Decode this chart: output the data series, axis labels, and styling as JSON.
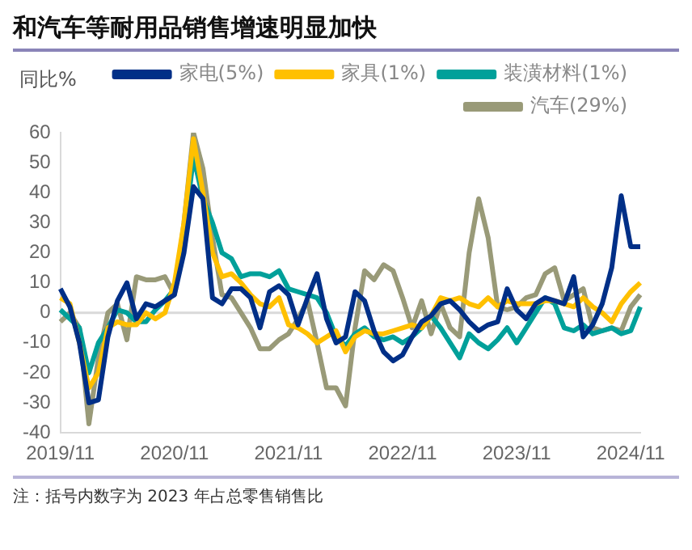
{
  "chart_data": {
    "type": "line",
    "title": "和汽车等耐用品销售增速明显加快",
    "ylabel": "同比%",
    "categories": [
      "2019/11",
      null,
      null,
      null,
      null,
      null,
      null,
      null,
      null,
      null,
      null,
      null,
      "2020/11",
      null,
      null,
      null,
      null,
      null,
      null,
      null,
      null,
      null,
      null,
      null,
      "2021/11",
      null,
      null,
      null,
      null,
      null,
      null,
      null,
      null,
      null,
      null,
      null,
      "2022/11",
      null,
      null,
      null,
      null,
      null,
      null,
      null,
      null,
      null,
      null,
      null,
      "2023/11",
      null,
      null,
      null,
      null,
      null,
      null,
      null,
      null,
      null,
      null,
      null,
      "2024/11",
      null
    ],
    "series": [
      {
        "name": "家电(5%)",
        "color": "#002f87",
        "values": [
          8,
          2,
          -10,
          -30,
          -29,
          -8,
          4,
          10,
          -2,
          3,
          2,
          4,
          6,
          20,
          42,
          38,
          5,
          3,
          8,
          8,
          5,
          -5,
          7,
          9,
          6,
          -4,
          5,
          13,
          -2,
          -10,
          -8,
          7,
          4,
          -6,
          -13,
          -16,
          -14,
          -8,
          -3,
          -1,
          3,
          4,
          1,
          -3,
          -6,
          -4,
          -3,
          8,
          1,
          -2,
          3,
          5,
          4,
          3,
          12,
          -8,
          -4,
          3,
          15,
          39,
          22,
          22
        ]
      },
      {
        "name": "家具(1%)",
        "color": "#ffc000",
        "values": [
          5,
          3,
          -10,
          -25,
          -20,
          -5,
          -3,
          -4,
          -4,
          0,
          -2,
          0,
          10,
          30,
          58,
          40,
          20,
          12,
          13,
          10,
          6,
          3,
          2,
          5,
          -4,
          -5,
          -7,
          -10,
          -8,
          -6,
          -13,
          -8,
          -6,
          -7,
          -7,
          -6,
          -5,
          -4,
          -5,
          -1,
          5,
          4,
          5,
          3,
          2,
          5,
          2,
          4,
          3,
          3,
          3,
          4,
          4,
          3,
          2,
          5,
          2,
          0,
          -3,
          3,
          7,
          10
        ]
      },
      {
        "name": "装潢材料(1%)",
        "color": "#00a09a",
        "values": [
          1,
          -2,
          -5,
          -20,
          -10,
          -5,
          1,
          0,
          -3,
          -3,
          1,
          4,
          8,
          25,
          52,
          38,
          30,
          20,
          18,
          12,
          13,
          13,
          12,
          14,
          8,
          7,
          6,
          5,
          0,
          -8,
          -11,
          -7,
          -5,
          -8,
          -9,
          -8,
          -10,
          -8,
          -5,
          -1,
          -5,
          -10,
          -15,
          -7,
          -10,
          -12,
          -9,
          -5,
          -10,
          -5,
          0,
          5,
          3,
          -5,
          -6,
          -4,
          -7,
          -6,
          -5,
          -7,
          -6,
          2
        ]
      },
      {
        "name": "汽车(29%)",
        "color": "#999a78",
        "values": [
          -3,
          0,
          -5,
          -37,
          -15,
          0,
          3,
          -9,
          12,
          11,
          11,
          12,
          6,
          30,
          60,
          48,
          25,
          6,
          5,
          0,
          -5,
          -12,
          -12,
          -9,
          -7,
          -2,
          4,
          -10,
          -25,
          -25,
          -31,
          -5,
          14,
          11,
          16,
          14,
          5,
          -5,
          4,
          -7,
          3,
          -5,
          -8,
          20,
          38,
          25,
          2,
          1,
          2,
          5,
          6,
          13,
          15,
          4,
          6,
          8,
          -5,
          -6,
          -5,
          -6,
          2,
          6
        ]
      }
    ],
    "ylim": [
      -40,
      60
    ],
    "yticks": [
      -40,
      -30,
      -20,
      -10,
      0,
      10,
      20,
      30,
      40,
      50,
      60
    ],
    "grid": false,
    "legend": "top",
    "marker": "none",
    "line_style": "solid",
    "ref_lines": [
      {
        "axis": "y",
        "value": 0,
        "color": "#d9d9d9"
      }
    ],
    "annotations": [
      "注：括号内数字为 2023 年占总零售销售比"
    ]
  }
}
